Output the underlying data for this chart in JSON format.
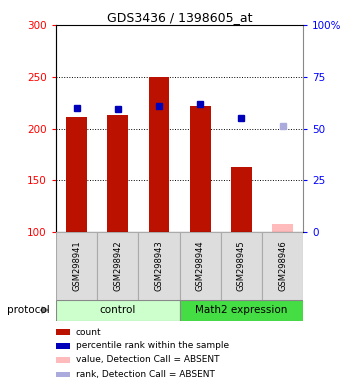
{
  "title": "GDS3436 / 1398605_at",
  "samples": [
    "GSM298941",
    "GSM298942",
    "GSM298943",
    "GSM298944",
    "GSM298945",
    "GSM298946"
  ],
  "count_values": [
    211,
    213,
    250,
    222,
    163,
    108
  ],
  "rank_values": [
    220,
    219,
    222,
    224,
    210,
    203
  ],
  "absent_flags": [
    false,
    false,
    false,
    false,
    false,
    true
  ],
  "ylim_left": [
    100,
    300
  ],
  "ylim_right": [
    0,
    100
  ],
  "left_ticks": [
    100,
    150,
    200,
    250,
    300
  ],
  "right_ticks": [
    0,
    25,
    50,
    75,
    100
  ],
  "left_tick_labels": [
    "100",
    "150",
    "200",
    "250",
    "300"
  ],
  "right_tick_labels": [
    "0",
    "25",
    "50",
    "75",
    "100%"
  ],
  "bar_color_present": "#bb1100",
  "bar_color_absent": "#ffbbbb",
  "rank_color_present": "#0000bb",
  "rank_color_absent": "#aaaadd",
  "group_info": [
    {
      "start": 0,
      "end": 3,
      "color": "#ccffcc",
      "label": "control"
    },
    {
      "start": 3,
      "end": 6,
      "color": "#44dd44",
      "label": "Math2 expression"
    }
  ],
  "sample_bg_color": "#dddddd",
  "sample_border_color": "#aaaaaa",
  "legend_items": [
    {
      "color": "#bb1100",
      "label": "count"
    },
    {
      "color": "#0000bb",
      "label": "percentile rank within the sample"
    },
    {
      "color": "#ffbbbb",
      "label": "value, Detection Call = ABSENT"
    },
    {
      "color": "#aaaadd",
      "label": "rank, Detection Call = ABSENT"
    }
  ],
  "bar_width": 0.5
}
